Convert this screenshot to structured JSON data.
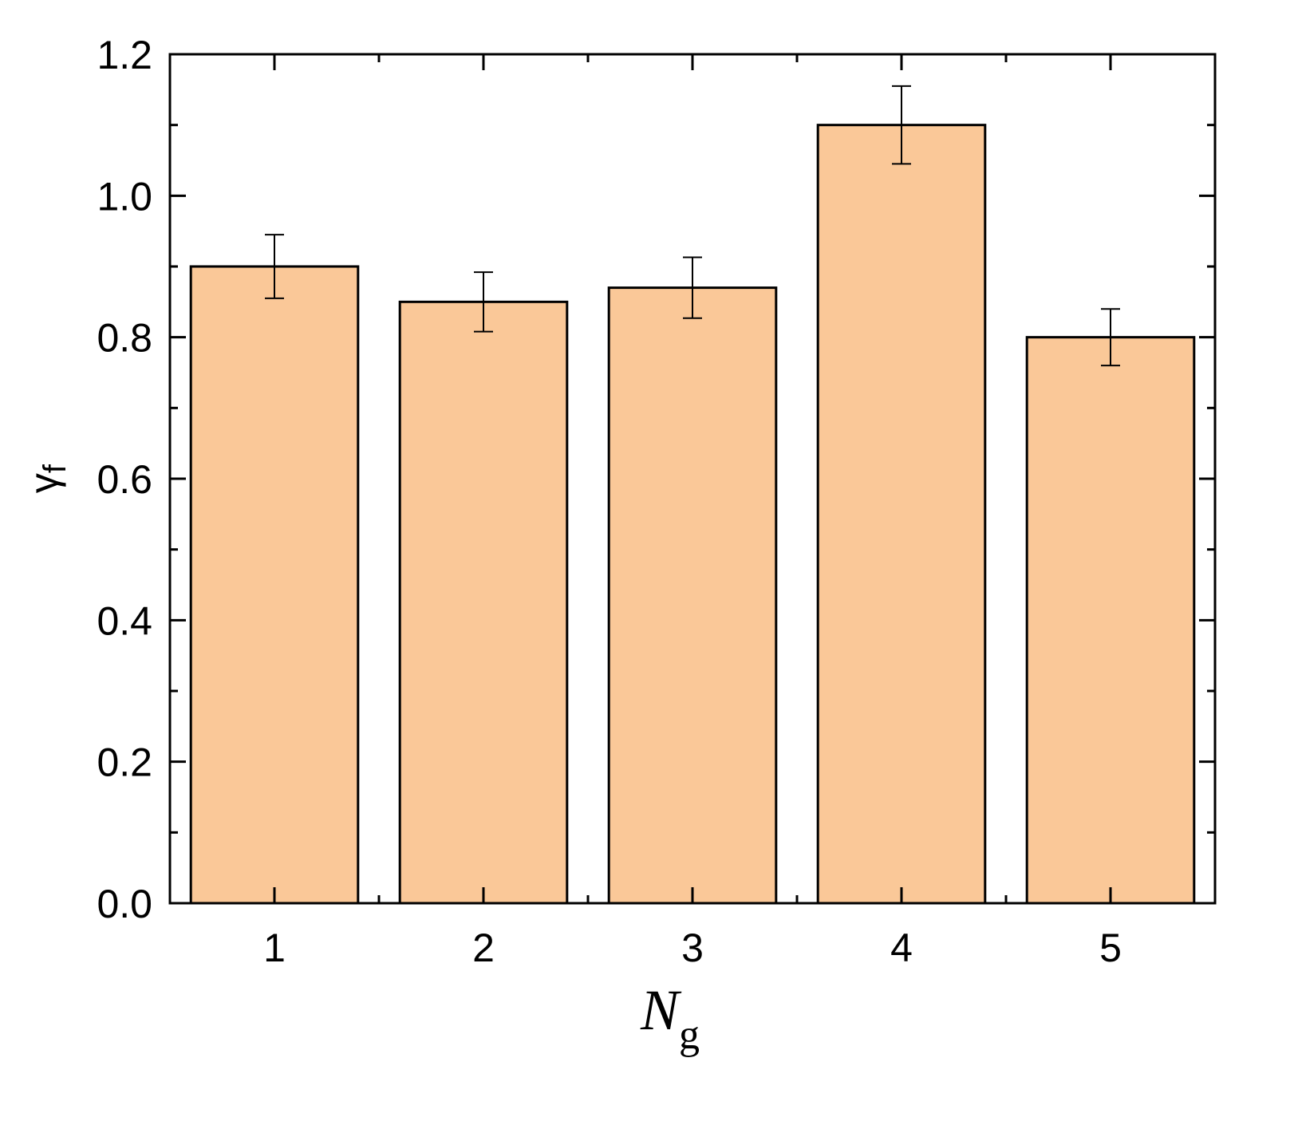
{
  "chart_data": {
    "type": "bar",
    "categories": [
      "1",
      "2",
      "3",
      "4",
      "5"
    ],
    "values": [
      0.9,
      0.85,
      0.87,
      1.1,
      0.8
    ],
    "errors": [
      0.045,
      0.042,
      0.043,
      0.055,
      0.04
    ],
    "color": "#fac898",
    "edgecolor": "#000000",
    "ylim": [
      0,
      1.2
    ],
    "yticks": [
      {
        "value": 0,
        "label": "0.0"
      },
      {
        "value": 0.2,
        "label": "0.2"
      },
      {
        "value": 0.4,
        "label": "0.4"
      },
      {
        "value": 0.6,
        "label": "0.6"
      },
      {
        "value": 0.8,
        "label": "0.8"
      },
      {
        "value": 1,
        "label": "1.0"
      },
      {
        "value": 1.2,
        "label": "1.2"
      }
    ],
    "yminorticks": [
      0.1,
      0.3,
      0.5,
      0.7,
      0.9,
      1.1
    ],
    "xlabel": "N",
    "xlabel_sub": "g",
    "ylabel": "γ",
    "ylabel_sub": "f",
    "grid": false
  }
}
